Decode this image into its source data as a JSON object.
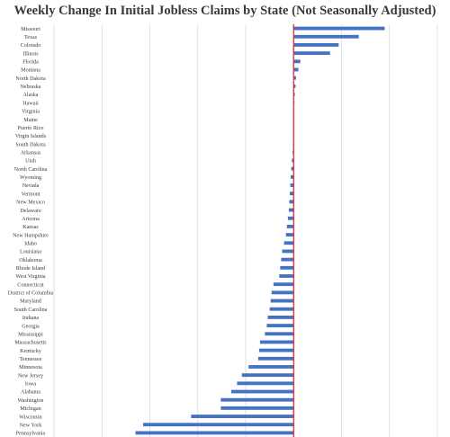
{
  "chart_data": {
    "type": "bar",
    "orientation": "horizontal",
    "title": "Weekly Change In Initial Jobless Claims by State (Not Seasonally Adjusted)",
    "xlabel": "",
    "ylabel": "",
    "grid": true,
    "legend": "none",
    "colors": {
      "bar": "#4472c4",
      "zero_line": "#e8262b",
      "grid": "#d9d9d9",
      "label": "#3a3a3a"
    },
    "xlim": [
      -2500,
      1500
    ],
    "categories": [
      "Missouri",
      "Texas",
      "Colorado",
      "Illinois",
      "Florida",
      "Montana",
      "North Dakota",
      "Nebraska",
      "Alaska",
      "Hawaii",
      "Virginia",
      "Maine",
      "Puerto Rico",
      "Virgin Islands",
      "South Dakota",
      "Arkansas",
      "Utah",
      "North Carolina",
      "Wyoming",
      "Nevada",
      "Vermont",
      "New Mexico",
      "Delaware",
      "Arizona",
      "Kansas",
      "New Hampshire",
      "Idaho",
      "Louisiana",
      "Oklahoma",
      "Rhode Island",
      "West Virginia",
      "Connecticut",
      "District of Columbia",
      "Maryland",
      "South Carolina",
      "Indiana",
      "Georgia",
      "Mississippi",
      "Massachusetts",
      "Kentucky",
      "Tennessee",
      "Minnesota",
      "New Jersey",
      "Iowa",
      "Alabama",
      "Washington",
      "Michigan",
      "Wisconsin",
      "New York",
      "Pennsylvania"
    ],
    "values": [
      950,
      680,
      470,
      380,
      70,
      50,
      25,
      20,
      12,
      8,
      5,
      3,
      2,
      1,
      -5,
      -10,
      -18,
      -25,
      -30,
      -35,
      -40,
      -45,
      -50,
      -60,
      -70,
      -80,
      -100,
      -120,
      -130,
      -140,
      -150,
      -210,
      -230,
      -240,
      -250,
      -270,
      -280,
      -300,
      -350,
      -360,
      -370,
      -470,
      -540,
      -590,
      -650,
      -760,
      -760,
      -1070,
      -1570,
      -1650
    ]
  }
}
